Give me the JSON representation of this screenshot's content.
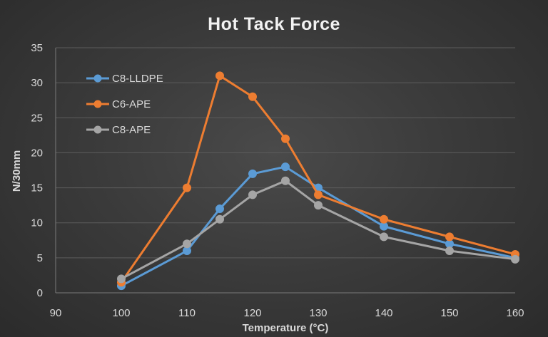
{
  "chart_data": {
    "type": "scatter",
    "title": "Hot Tack Force",
    "xlabel": "Temperature (°C)",
    "ylabel": "N/30mm",
    "xlim": [
      90,
      160
    ],
    "ylim": [
      0,
      35
    ],
    "xticks": [
      90,
      100,
      110,
      120,
      130,
      140,
      150,
      160
    ],
    "yticks": [
      0,
      5,
      10,
      15,
      20,
      25,
      30,
      35
    ],
    "grid": "horizontal",
    "legend_position": "top-left",
    "series": [
      {
        "name": "C8-LLDPE",
        "color": "#5b9bd5",
        "x": [
          100,
          110,
          115,
          120,
          125,
          130,
          140,
          150,
          160
        ],
        "y": [
          1,
          6,
          12,
          17,
          18,
          15,
          9.5,
          7,
          5
        ]
      },
      {
        "name": "C6-APE",
        "color": "#ed7d31",
        "x": [
          100,
          110,
          115,
          120,
          125,
          130,
          140,
          150,
          160
        ],
        "y": [
          1.5,
          15,
          31,
          28,
          22,
          14,
          10.5,
          8,
          5.5
        ]
      },
      {
        "name": "C8-APE",
        "color": "#a5a5a5",
        "x": [
          100,
          110,
          115,
          120,
          125,
          130,
          140,
          150,
          160
        ],
        "y": [
          2,
          7,
          10.5,
          14,
          16,
          12.5,
          8,
          6,
          4.8
        ]
      }
    ]
  }
}
